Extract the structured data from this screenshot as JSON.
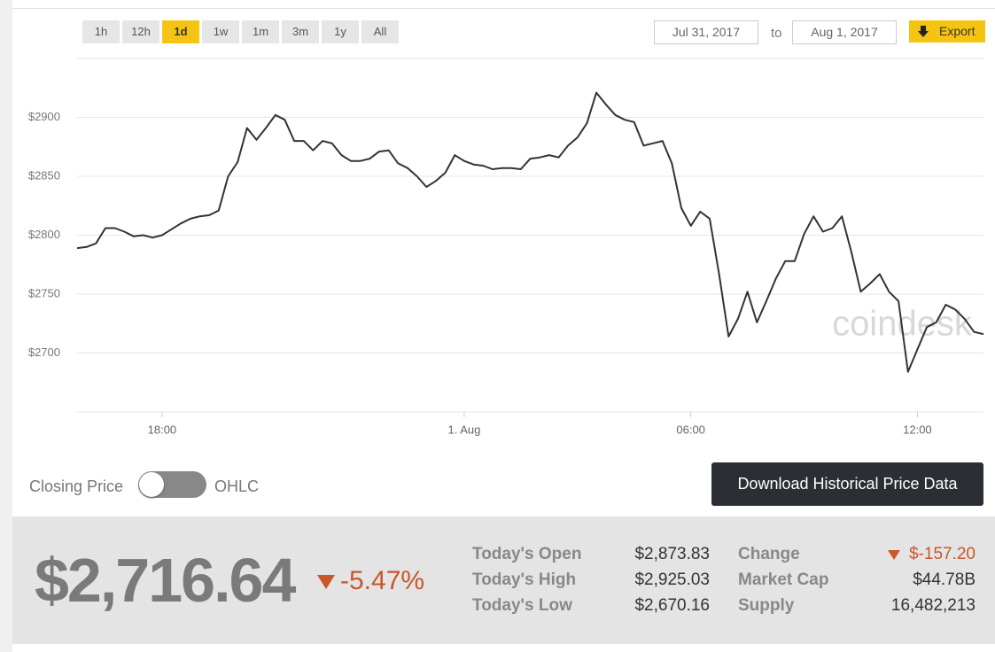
{
  "controls": {
    "ranges": [
      "1h",
      "12h",
      "1d",
      "1w",
      "1m",
      "3m",
      "1y",
      "All"
    ],
    "active_range": "1d",
    "from": "Jul 31, 2017",
    "to_label": "to",
    "to": "Aug 1, 2017",
    "export": "Export"
  },
  "chart_data": {
    "type": "line",
    "watermark": "coindesk",
    "categories": [
      null,
      null,
      null,
      null,
      null,
      null,
      null,
      null,
      null,
      "18:00",
      null,
      null,
      null,
      null,
      null,
      null,
      null,
      null,
      null,
      null,
      null,
      null,
      null,
      null,
      null,
      null,
      null,
      null,
      null,
      null,
      null,
      null,
      null,
      null,
      null,
      null,
      null,
      null,
      null,
      null,
      null,
      "1. Aug",
      null,
      null,
      null,
      null,
      null,
      null,
      null,
      null,
      null,
      null,
      null,
      null,
      null,
      null,
      null,
      null,
      null,
      null,
      null,
      null,
      null,
      null,
      null,
      "06:00",
      null,
      null,
      null,
      null,
      null,
      null,
      null,
      null,
      null,
      null,
      null,
      null,
      null,
      null,
      null,
      null,
      null,
      null,
      null,
      null,
      null,
      null,
      null,
      "12:00",
      null,
      null,
      null,
      null,
      null,
      null,
      null
    ],
    "series": [
      {
        "name": "Closing Price",
        "color": "#333333",
        "values": [
          2789,
          2790,
          2793,
          2806,
          2806,
          2803,
          2799,
          2800,
          2798,
          2800,
          2805,
          2810,
          2814,
          2816,
          2817,
          2821,
          2850,
          2862,
          2891,
          2881,
          2891,
          2902,
          2898,
          2880,
          2880,
          2872,
          2880,
          2878,
          2868,
          2863,
          2863,
          2865,
          2871,
          2872,
          2861,
          2857,
          2850,
          2841,
          2846,
          2853,
          2868,
          2863,
          2860,
          2859,
          2856,
          2857,
          2857,
          2856,
          2865,
          2866,
          2868,
          2866,
          2876,
          2883,
          2895,
          2921,
          2911,
          2902,
          2898,
          2896,
          2876,
          2878,
          2880,
          2861,
          2823,
          2808,
          2820,
          2814,
          2767,
          2714,
          2729,
          2752,
          2726,
          2744,
          2763,
          2778,
          2778,
          2801,
          2816,
          2803,
          2806,
          2816,
          2786,
          2752,
          2759,
          2767,
          2752,
          2744,
          2684,
          2703,
          2722,
          2726,
          2741,
          2737,
          2729,
          2718,
          2716
        ]
      }
    ],
    "ylim": [
      2650,
      2950
    ],
    "yticks": [
      {
        "value": 2700,
        "label": "$2700"
      },
      {
        "value": 2750,
        "label": "$2750"
      },
      {
        "value": 2800,
        "label": "$2800"
      },
      {
        "value": 2850,
        "label": "$2850"
      },
      {
        "value": 2900,
        "label": "$2900"
      }
    ],
    "grid": true
  },
  "toggle": {
    "left": "Closing Price",
    "right": "OHLC"
  },
  "download": "Download Historical Price Data",
  "summary": {
    "price": "$2,716.64",
    "change_pct": "-5.47%",
    "stats": [
      {
        "label": "Today's Open",
        "value": "$2,873.83"
      },
      {
        "label": "Today's High",
        "value": "$2,925.03"
      },
      {
        "label": "Today's Low",
        "value": "$2,670.16"
      }
    ],
    "stats2": [
      {
        "label": "Change",
        "value": "$-157.20"
      },
      {
        "label": "Market Cap",
        "value": "$44.78B"
      },
      {
        "label": "Supply",
        "value": "16,482,213"
      }
    ]
  }
}
